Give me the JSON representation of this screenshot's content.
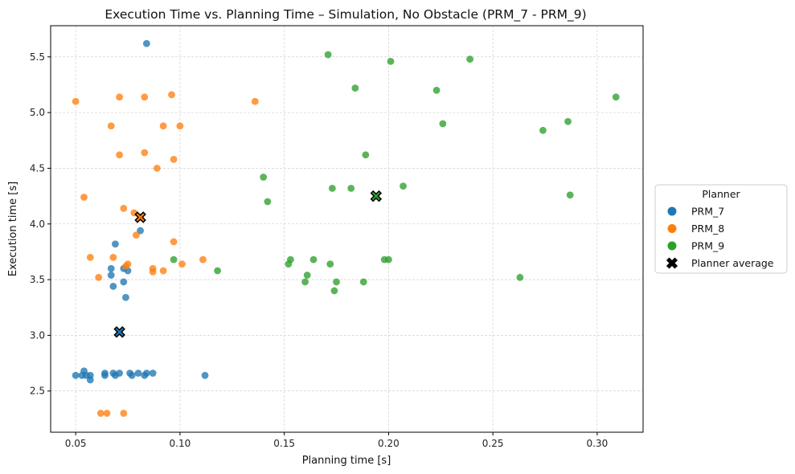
{
  "chart_data": {
    "type": "scatter",
    "title": "Execution Time vs. Planning Time – Simulation, No Obstacle (PRM_7 - PRM_9)",
    "xlabel": "Planning time [s]",
    "ylabel": "Execution time [s]",
    "xlim": [
      0.038,
      0.322
    ],
    "ylim": [
      2.13,
      5.78
    ],
    "xticks": [
      0.05,
      0.1,
      0.15,
      0.2,
      0.25,
      0.3
    ],
    "xtick_labels": [
      "0.05",
      "0.10",
      "0.15",
      "0.20",
      "0.25",
      "0.30"
    ],
    "yticks": [
      2.5,
      3.0,
      3.5,
      4.0,
      4.5,
      5.0,
      5.5
    ],
    "ytick_labels": [
      "2.5",
      "3.0",
      "3.5",
      "4.0",
      "4.5",
      "5.0",
      "5.5"
    ],
    "grid": true,
    "legend": {
      "title": "Planner",
      "placement": "center-right-outside",
      "entries": [
        "PRM_7",
        "PRM_8",
        "PRM_9",
        "Planner average"
      ]
    },
    "series": [
      {
        "name": "PRM_7",
        "color": "#1f77b4",
        "points": [
          [
            0.084,
            5.62
          ],
          [
            0.081,
            3.94
          ],
          [
            0.069,
            3.82
          ],
          [
            0.067,
            3.6
          ],
          [
            0.073,
            3.6
          ],
          [
            0.075,
            3.58
          ],
          [
            0.067,
            3.54
          ],
          [
            0.073,
            3.48
          ],
          [
            0.068,
            3.44
          ],
          [
            0.074,
            3.34
          ],
          [
            0.05,
            2.64
          ],
          [
            0.053,
            2.64
          ],
          [
            0.054,
            2.68
          ],
          [
            0.055,
            2.64
          ],
          [
            0.057,
            2.64
          ],
          [
            0.057,
            2.6
          ],
          [
            0.064,
            2.66
          ],
          [
            0.064,
            2.64
          ],
          [
            0.068,
            2.66
          ],
          [
            0.069,
            2.64
          ],
          [
            0.071,
            2.66
          ],
          [
            0.076,
            2.66
          ],
          [
            0.077,
            2.64
          ],
          [
            0.08,
            2.66
          ],
          [
            0.083,
            2.64
          ],
          [
            0.084,
            2.66
          ],
          [
            0.087,
            2.66
          ],
          [
            0.112,
            2.64
          ]
        ],
        "average": [
          0.071,
          3.03
        ]
      },
      {
        "name": "PRM_8",
        "color": "#ff7f0e",
        "points": [
          [
            0.05,
            5.1
          ],
          [
            0.071,
            5.14
          ],
          [
            0.083,
            5.14
          ],
          [
            0.096,
            5.16
          ],
          [
            0.136,
            5.1
          ],
          [
            0.067,
            4.88
          ],
          [
            0.092,
            4.88
          ],
          [
            0.1,
            4.88
          ],
          [
            0.083,
            4.64
          ],
          [
            0.071,
            4.62
          ],
          [
            0.097,
            4.58
          ],
          [
            0.089,
            4.5
          ],
          [
            0.054,
            4.24
          ],
          [
            0.073,
            4.14
          ],
          [
            0.078,
            4.1
          ],
          [
            0.079,
            3.9
          ],
          [
            0.097,
            3.84
          ],
          [
            0.057,
            3.7
          ],
          [
            0.068,
            3.7
          ],
          [
            0.111,
            3.68
          ],
          [
            0.075,
            3.64
          ],
          [
            0.101,
            3.64
          ],
          [
            0.074,
            3.62
          ],
          [
            0.087,
            3.6
          ],
          [
            0.087,
            3.57
          ],
          [
            0.092,
            3.58
          ],
          [
            0.061,
            3.52
          ],
          [
            0.062,
            2.3
          ],
          [
            0.065,
            2.3
          ],
          [
            0.073,
            2.3
          ]
        ],
        "average": [
          0.081,
          4.06
        ]
      },
      {
        "name": "PRM_9",
        "color": "#2ca02c",
        "points": [
          [
            0.171,
            5.52
          ],
          [
            0.201,
            5.46
          ],
          [
            0.239,
            5.48
          ],
          [
            0.184,
            5.22
          ],
          [
            0.223,
            5.2
          ],
          [
            0.309,
            5.14
          ],
          [
            0.226,
            4.9
          ],
          [
            0.286,
            4.92
          ],
          [
            0.274,
            4.84
          ],
          [
            0.189,
            4.62
          ],
          [
            0.14,
            4.42
          ],
          [
            0.173,
            4.32
          ],
          [
            0.182,
            4.32
          ],
          [
            0.207,
            4.34
          ],
          [
            0.287,
            4.26
          ],
          [
            0.142,
            4.2
          ],
          [
            0.097,
            3.68
          ],
          [
            0.153,
            3.68
          ],
          [
            0.164,
            3.68
          ],
          [
            0.198,
            3.68
          ],
          [
            0.2,
            3.68
          ],
          [
            0.152,
            3.64
          ],
          [
            0.172,
            3.64
          ],
          [
            0.118,
            3.58
          ],
          [
            0.161,
            3.54
          ],
          [
            0.263,
            3.52
          ],
          [
            0.16,
            3.48
          ],
          [
            0.175,
            3.48
          ],
          [
            0.188,
            3.48
          ],
          [
            0.174,
            3.4
          ]
        ],
        "average": [
          0.194,
          4.25
        ]
      }
    ]
  }
}
